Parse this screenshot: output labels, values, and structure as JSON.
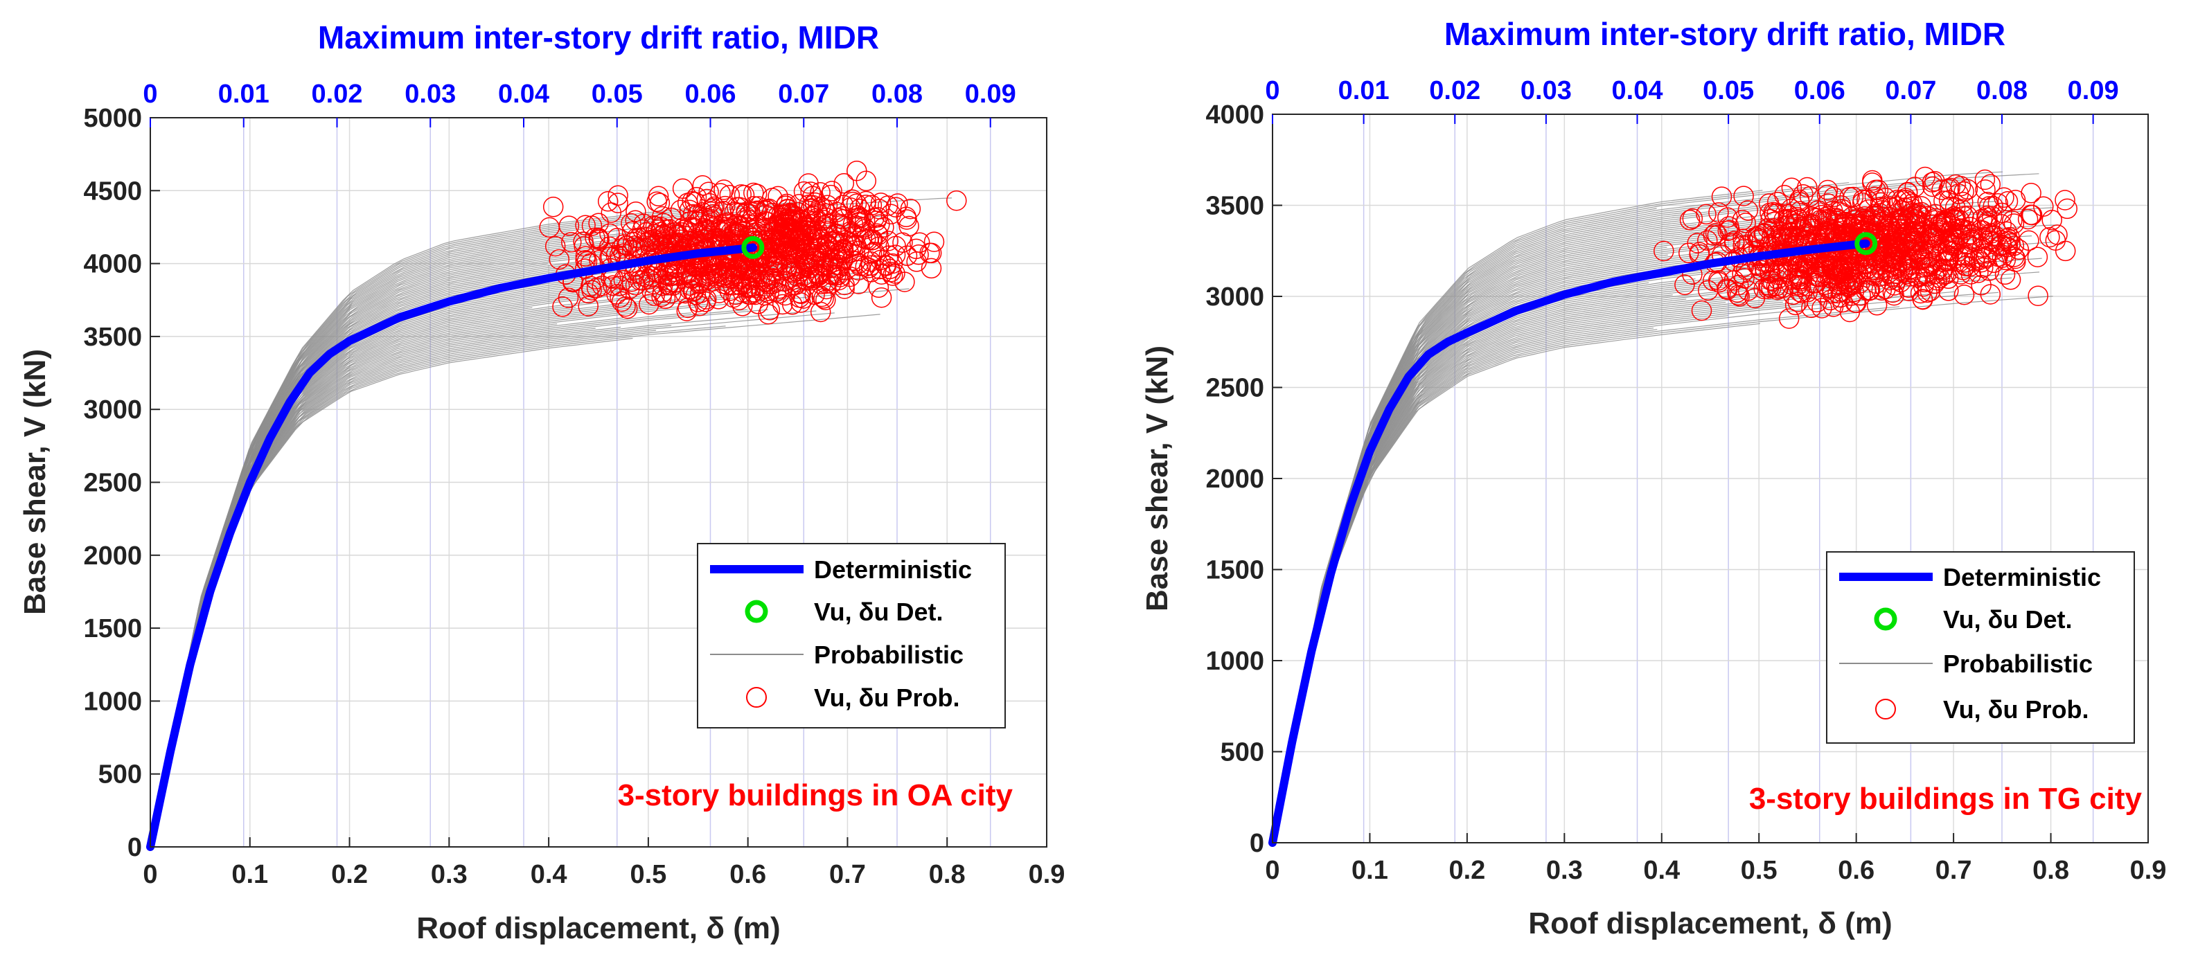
{
  "colors": {
    "deterministic": "#0000ff",
    "probabilistic": "#8c8c8c",
    "ultimate_det": "#00e000",
    "ultimate_prob": "#ff0000",
    "top_axis": "#0000ff",
    "grid_x": "#c8c8f0",
    "grid_y": "#d8d8d8"
  },
  "chart_data": [
    {
      "type": "line",
      "xlabel": "Roof displacement, δ (m)",
      "ylabel": "Base shear, V (kN)",
      "top_xlabel": "Maximum inter-story drift ratio, MIDR",
      "xlim": [
        0,
        0.9
      ],
      "ylim": [
        0,
        5000
      ],
      "xticks": [
        "0",
        "0.1",
        "0.2",
        "0.3",
        "0.4",
        "0.5",
        "0.6",
        "0.7",
        "0.8",
        "0.9"
      ],
      "yticks": [
        "0",
        "500",
        "1000",
        "1500",
        "2000",
        "2500",
        "3000",
        "3500",
        "4000",
        "4500",
        "5000"
      ],
      "top_xticks": [
        "0",
        "0.01",
        "0.02",
        "0.03",
        "0.04",
        "0.05",
        "0.06",
        "0.07",
        "0.08",
        "0.09"
      ],
      "midr_per_m": 0.1067,
      "annotation": "3-story buildings in OA city",
      "legend": [
        {
          "label": "Deterministic",
          "kind": "line"
        },
        {
          "label": "Vu, δu Det.",
          "kind": "green-circle"
        },
        {
          "label": "Probabilistic",
          "kind": "gray-line"
        },
        {
          "label": "Vu, δu Prob.",
          "kind": "red-circle"
        }
      ],
      "series": [
        {
          "name": "Deterministic",
          "x": [
            0,
            0.02,
            0.04,
            0.06,
            0.08,
            0.1,
            0.12,
            0.14,
            0.16,
            0.18,
            0.2,
            0.25,
            0.3,
            0.35,
            0.4,
            0.45,
            0.5,
            0.55,
            0.6,
            0.605
          ],
          "y": [
            0,
            650,
            1250,
            1750,
            2150,
            2500,
            2800,
            3050,
            3250,
            3380,
            3470,
            3630,
            3740,
            3830,
            3900,
            3960,
            4020,
            4070,
            4105,
            4110
          ]
        },
        {
          "name": "Probabilistic",
          "envelope_upper": {
            "x": [
              0,
              0.05,
              0.1,
              0.15,
              0.2,
              0.25,
              0.3,
              0.4,
              0.5,
              0.6,
              0.7,
              0.8
            ],
            "y": [
              0,
              1700,
              2750,
              3400,
              3800,
              4020,
              4150,
              4270,
              4350,
              4420,
              4470,
              4510
            ]
          },
          "envelope_lower": {
            "x": [
              0,
              0.05,
              0.1,
              0.15,
              0.2,
              0.25,
              0.3,
              0.4,
              0.5,
              0.6,
              0.7,
              0.8
            ],
            "y": [
              0,
              1600,
              2450,
              2900,
              3120,
              3240,
              3320,
              3420,
              3500,
              3560,
              3620,
              3680
            ]
          }
        },
        {
          "name": "Vu, δu Det.",
          "x": [
            0.605
          ],
          "y": [
            4110
          ]
        },
        {
          "name": "Vu, δu Prob.",
          "cloud": {
            "x_range": [
              0.37,
              0.83
            ],
            "y_range": [
              3500,
              4700
            ],
            "count": 900
          }
        }
      ]
    },
    {
      "type": "line",
      "xlabel": "Roof displacement, δ (m)",
      "ylabel": "Base shear, V (kN)",
      "top_xlabel": "Maximum inter-story drift ratio, MIDR",
      "xlim": [
        0,
        0.9
      ],
      "ylim": [
        0,
        4000
      ],
      "xticks": [
        "0",
        "0.1",
        "0.2",
        "0.3",
        "0.4",
        "0.5",
        "0.6",
        "0.7",
        "0.8",
        "0.9"
      ],
      "yticks": [
        "0",
        "500",
        "1000",
        "1500",
        "2000",
        "2500",
        "3000",
        "3500",
        "4000"
      ],
      "top_xticks": [
        "0",
        "0.01",
        "0.02",
        "0.03",
        "0.04",
        "0.05",
        "0.06",
        "0.07",
        "0.08",
        "0.09"
      ],
      "midr_per_m": 0.1067,
      "annotation": "3-story buildings in TG city",
      "legend": [
        {
          "label": "Deterministic",
          "kind": "line"
        },
        {
          "label": "Vu, δu Det.",
          "kind": "green-circle"
        },
        {
          "label": "Probabilistic",
          "kind": "gray-line"
        },
        {
          "label": "Vu, δu Prob.",
          "kind": "red-circle"
        }
      ],
      "series": [
        {
          "name": "Deterministic",
          "x": [
            0,
            0.02,
            0.04,
            0.06,
            0.08,
            0.1,
            0.12,
            0.14,
            0.16,
            0.18,
            0.2,
            0.25,
            0.3,
            0.35,
            0.4,
            0.45,
            0.5,
            0.55,
            0.6,
            0.61
          ],
          "y": [
            0,
            550,
            1050,
            1480,
            1850,
            2150,
            2380,
            2560,
            2680,
            2750,
            2800,
            2920,
            3010,
            3080,
            3130,
            3180,
            3220,
            3255,
            3285,
            3290
          ]
        },
        {
          "name": "Probabilistic",
          "envelope_upper": {
            "x": [
              0,
              0.05,
              0.1,
              0.15,
              0.2,
              0.25,
              0.3,
              0.4,
              0.5,
              0.6,
              0.7,
              0.8
            ],
            "y": [
              0,
              1400,
              2300,
              2850,
              3150,
              3320,
              3420,
              3520,
              3580,
              3640,
              3690,
              3720
            ]
          },
          "envelope_lower": {
            "x": [
              0,
              0.05,
              0.1,
              0.15,
              0.2,
              0.25,
              0.3,
              0.4,
              0.5,
              0.6,
              0.7,
              0.8
            ],
            "y": [
              0,
              1300,
              2000,
              2380,
              2560,
              2660,
              2720,
              2790,
              2850,
              2900,
              2950,
              2990
            ]
          }
        },
        {
          "name": "Vu, δu Det.",
          "x": [
            0.61
          ],
          "y": [
            3290
          ]
        },
        {
          "name": "Vu, δu Prob.",
          "cloud": {
            "x_range": [
              0.38,
              0.85
            ],
            "y_range": [
              2820,
              3750
            ],
            "count": 900
          }
        }
      ]
    }
  ]
}
